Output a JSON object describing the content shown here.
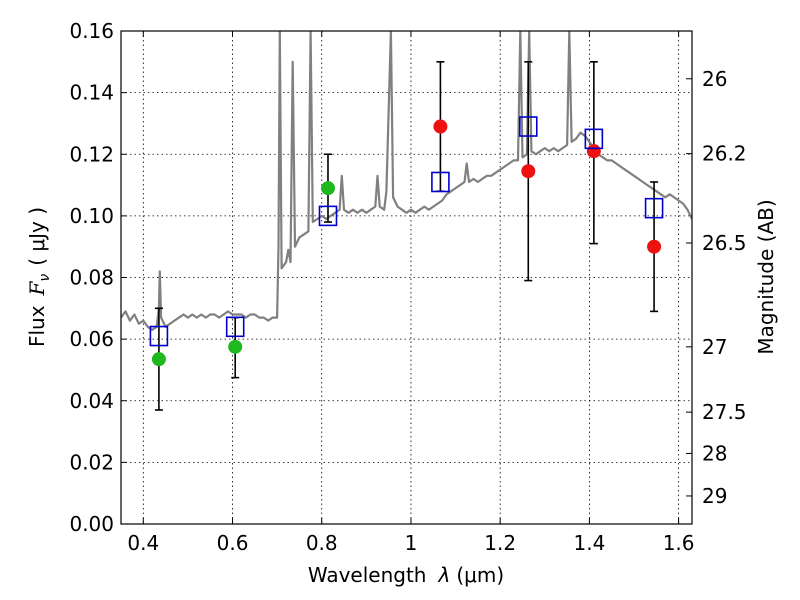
{
  "chart_data": {
    "type": "scatter",
    "xlabel": "Wavelength",
    "xlabel_symbol": "λ",
    "xlabel_unit": "(μm)",
    "ylabel": "Flux",
    "ylabel_symbol": "F",
    "ylabel_subscript": "ν",
    "ylabel_unit": "( μJy )",
    "ylabel_right": "Magnitude (AB)",
    "xlim": [
      0.35,
      1.63
    ],
    "ylim": [
      0.0,
      0.16
    ],
    "grid": true,
    "x_ticks": [
      0.4,
      0.6,
      0.8,
      1.0,
      1.2,
      1.4,
      1.6
    ],
    "x_tick_labels": [
      "0.4",
      "0.6",
      "0.8",
      "1",
      "1.2",
      "1.4",
      "1.6"
    ],
    "y_ticks": [
      0.0,
      0.02,
      0.04,
      0.06,
      0.08,
      0.1,
      0.12,
      0.14,
      0.16
    ],
    "y_tick_labels": [
      "0.00",
      "0.02",
      "0.04",
      "0.06",
      "0.08",
      "0.10",
      "0.12",
      "0.14",
      "0.16"
    ],
    "right_ticks": [
      {
        "label": "26",
        "flux": 0.1445
      },
      {
        "label": "26.2",
        "flux": 0.1202
      },
      {
        "label": "26.5",
        "flux": 0.0912
      },
      {
        "label": "27",
        "flux": 0.0575
      },
      {
        "label": "27.5",
        "flux": 0.0363
      },
      {
        "label": "28",
        "flux": 0.0229
      },
      {
        "label": "29",
        "flux": 0.0091
      }
    ],
    "colors": {
      "spectrum": "#808080",
      "green": "#1fb81f",
      "red": "#ee1111",
      "model": "#0000cc",
      "errorbar": "#000000"
    },
    "spectrum": {
      "name": "model spectrum",
      "points": [
        [
          0.35,
          0.067
        ],
        [
          0.36,
          0.069
        ],
        [
          0.37,
          0.066
        ],
        [
          0.38,
          0.068
        ],
        [
          0.39,
          0.065
        ],
        [
          0.4,
          0.066
        ],
        [
          0.41,
          0.064
        ],
        [
          0.42,
          0.063
        ],
        [
          0.43,
          0.064
        ],
        [
          0.435,
          0.07
        ],
        [
          0.437,
          0.082
        ],
        [
          0.44,
          0.067
        ],
        [
          0.45,
          0.064
        ],
        [
          0.46,
          0.065
        ],
        [
          0.47,
          0.066
        ],
        [
          0.48,
          0.067
        ],
        [
          0.49,
          0.068
        ],
        [
          0.5,
          0.067
        ],
        [
          0.51,
          0.068
        ],
        [
          0.52,
          0.067
        ],
        [
          0.53,
          0.068
        ],
        [
          0.54,
          0.067
        ],
        [
          0.55,
          0.068
        ],
        [
          0.56,
          0.068
        ],
        [
          0.57,
          0.067
        ],
        [
          0.58,
          0.068
        ],
        [
          0.59,
          0.069
        ],
        [
          0.6,
          0.068
        ],
        [
          0.61,
          0.068
        ],
        [
          0.62,
          0.068
        ],
        [
          0.63,
          0.067
        ],
        [
          0.64,
          0.068
        ],
        [
          0.65,
          0.068
        ],
        [
          0.66,
          0.067
        ],
        [
          0.67,
          0.067
        ],
        [
          0.68,
          0.066
        ],
        [
          0.69,
          0.067
        ],
        [
          0.7,
          0.067
        ],
        [
          0.703,
          0.09
        ],
        [
          0.706,
          0.16
        ],
        [
          0.71,
          0.083
        ],
        [
          0.72,
          0.085
        ],
        [
          0.725,
          0.089
        ],
        [
          0.73,
          0.085
        ],
        [
          0.735,
          0.15
        ],
        [
          0.74,
          0.09
        ],
        [
          0.75,
          0.093
        ],
        [
          0.76,
          0.094
        ],
        [
          0.77,
          0.095
        ],
        [
          0.775,
          0.16
        ],
        [
          0.78,
          0.098
        ],
        [
          0.79,
          0.099
        ],
        [
          0.8,
          0.1
        ],
        [
          0.81,
          0.099
        ],
        [
          0.82,
          0.1
        ],
        [
          0.83,
          0.101
        ],
        [
          0.84,
          0.102
        ],
        [
          0.845,
          0.113
        ],
        [
          0.85,
          0.102
        ],
        [
          0.86,
          0.101
        ],
        [
          0.87,
          0.102
        ],
        [
          0.88,
          0.101
        ],
        [
          0.89,
          0.102
        ],
        [
          0.9,
          0.101
        ],
        [
          0.91,
          0.102
        ],
        [
          0.92,
          0.103
        ],
        [
          0.925,
          0.113
        ],
        [
          0.93,
          0.103
        ],
        [
          0.94,
          0.102
        ],
        [
          0.945,
          0.108
        ],
        [
          0.955,
          0.16
        ],
        [
          0.96,
          0.106
        ],
        [
          0.97,
          0.103
        ],
        [
          0.98,
          0.102
        ],
        [
          0.99,
          0.101
        ],
        [
          1.0,
          0.102
        ],
        [
          1.01,
          0.101
        ],
        [
          1.02,
          0.102
        ],
        [
          1.03,
          0.103
        ],
        [
          1.04,
          0.102
        ],
        [
          1.05,
          0.103
        ],
        [
          1.06,
          0.104
        ],
        [
          1.07,
          0.105
        ],
        [
          1.08,
          0.107
        ],
        [
          1.09,
          0.108
        ],
        [
          1.1,
          0.109
        ],
        [
          1.11,
          0.11
        ],
        [
          1.12,
          0.111
        ],
        [
          1.125,
          0.117
        ],
        [
          1.13,
          0.111
        ],
        [
          1.14,
          0.112
        ],
        [
          1.15,
          0.111
        ],
        [
          1.16,
          0.112
        ],
        [
          1.17,
          0.113
        ],
        [
          1.18,
          0.113
        ],
        [
          1.19,
          0.114
        ],
        [
          1.2,
          0.115
        ],
        [
          1.21,
          0.116
        ],
        [
          1.22,
          0.117
        ],
        [
          1.23,
          0.118
        ],
        [
          1.24,
          0.118
        ],
        [
          1.245,
          0.16
        ],
        [
          1.25,
          0.119
        ],
        [
          1.26,
          0.12
        ],
        [
          1.265,
          0.16
        ],
        [
          1.27,
          0.121
        ],
        [
          1.28,
          0.12
        ],
        [
          1.29,
          0.121
        ],
        [
          1.3,
          0.122
        ],
        [
          1.31,
          0.121
        ],
        [
          1.32,
          0.122
        ],
        [
          1.33,
          0.121
        ],
        [
          1.34,
          0.122
        ],
        [
          1.35,
          0.123
        ],
        [
          1.355,
          0.16
        ],
        [
          1.36,
          0.124
        ],
        [
          1.37,
          0.125
        ],
        [
          1.38,
          0.127
        ],
        [
          1.39,
          0.126
        ],
        [
          1.4,
          0.124
        ],
        [
          1.41,
          0.122
        ],
        [
          1.42,
          0.12
        ],
        [
          1.43,
          0.119
        ],
        [
          1.44,
          0.118
        ],
        [
          1.45,
          0.118
        ],
        [
          1.46,
          0.117
        ],
        [
          1.47,
          0.116
        ],
        [
          1.48,
          0.115
        ],
        [
          1.49,
          0.114
        ],
        [
          1.5,
          0.113
        ],
        [
          1.51,
          0.112
        ],
        [
          1.52,
          0.111
        ],
        [
          1.53,
          0.11
        ],
        [
          1.54,
          0.109
        ],
        [
          1.55,
          0.108
        ],
        [
          1.56,
          0.107
        ],
        [
          1.57,
          0.106
        ],
        [
          1.58,
          0.107
        ],
        [
          1.59,
          0.106
        ],
        [
          1.6,
          0.105
        ],
        [
          1.61,
          0.104
        ],
        [
          1.62,
          0.102
        ],
        [
          1.63,
          0.099
        ]
      ]
    },
    "series": [
      {
        "name": "observed (green)",
        "color": "green",
        "points": [
          {
            "x": 0.435,
            "y": 0.0535
          },
          {
            "x": 0.606,
            "y": 0.0575
          },
          {
            "x": 0.814,
            "y": 0.109
          }
        ]
      },
      {
        "name": "observed (red)",
        "color": "red",
        "points": [
          {
            "x": 1.066,
            "y": 0.129
          },
          {
            "x": 1.263,
            "y": 0.1145
          },
          {
            "x": 1.41,
            "y": 0.121
          },
          {
            "x": 1.545,
            "y": 0.09
          }
        ]
      },
      {
        "name": "model photometry",
        "color": "model",
        "marker": "open-square",
        "points": [
          {
            "x": 0.435,
            "y": 0.061
          },
          {
            "x": 0.606,
            "y": 0.064
          },
          {
            "x": 0.814,
            "y": 0.1
          },
          {
            "x": 1.066,
            "y": 0.111
          },
          {
            "x": 1.263,
            "y": 0.129
          },
          {
            "x": 1.41,
            "y": 0.125
          },
          {
            "x": 1.545,
            "y": 0.1025
          }
        ]
      }
    ],
    "error_bars": [
      {
        "x": 0.435,
        "low": 0.037,
        "high": 0.07
      },
      {
        "x": 0.606,
        "low": 0.0475,
        "high": 0.067
      },
      {
        "x": 0.814,
        "low": 0.098,
        "high": 0.12
      },
      {
        "x": 1.066,
        "low": 0.108,
        "high": 0.15
      },
      {
        "x": 1.263,
        "low": 0.079,
        "high": 0.15
      },
      {
        "x": 1.41,
        "low": 0.091,
        "high": 0.15
      },
      {
        "x": 1.545,
        "low": 0.069,
        "high": 0.111
      }
    ]
  }
}
